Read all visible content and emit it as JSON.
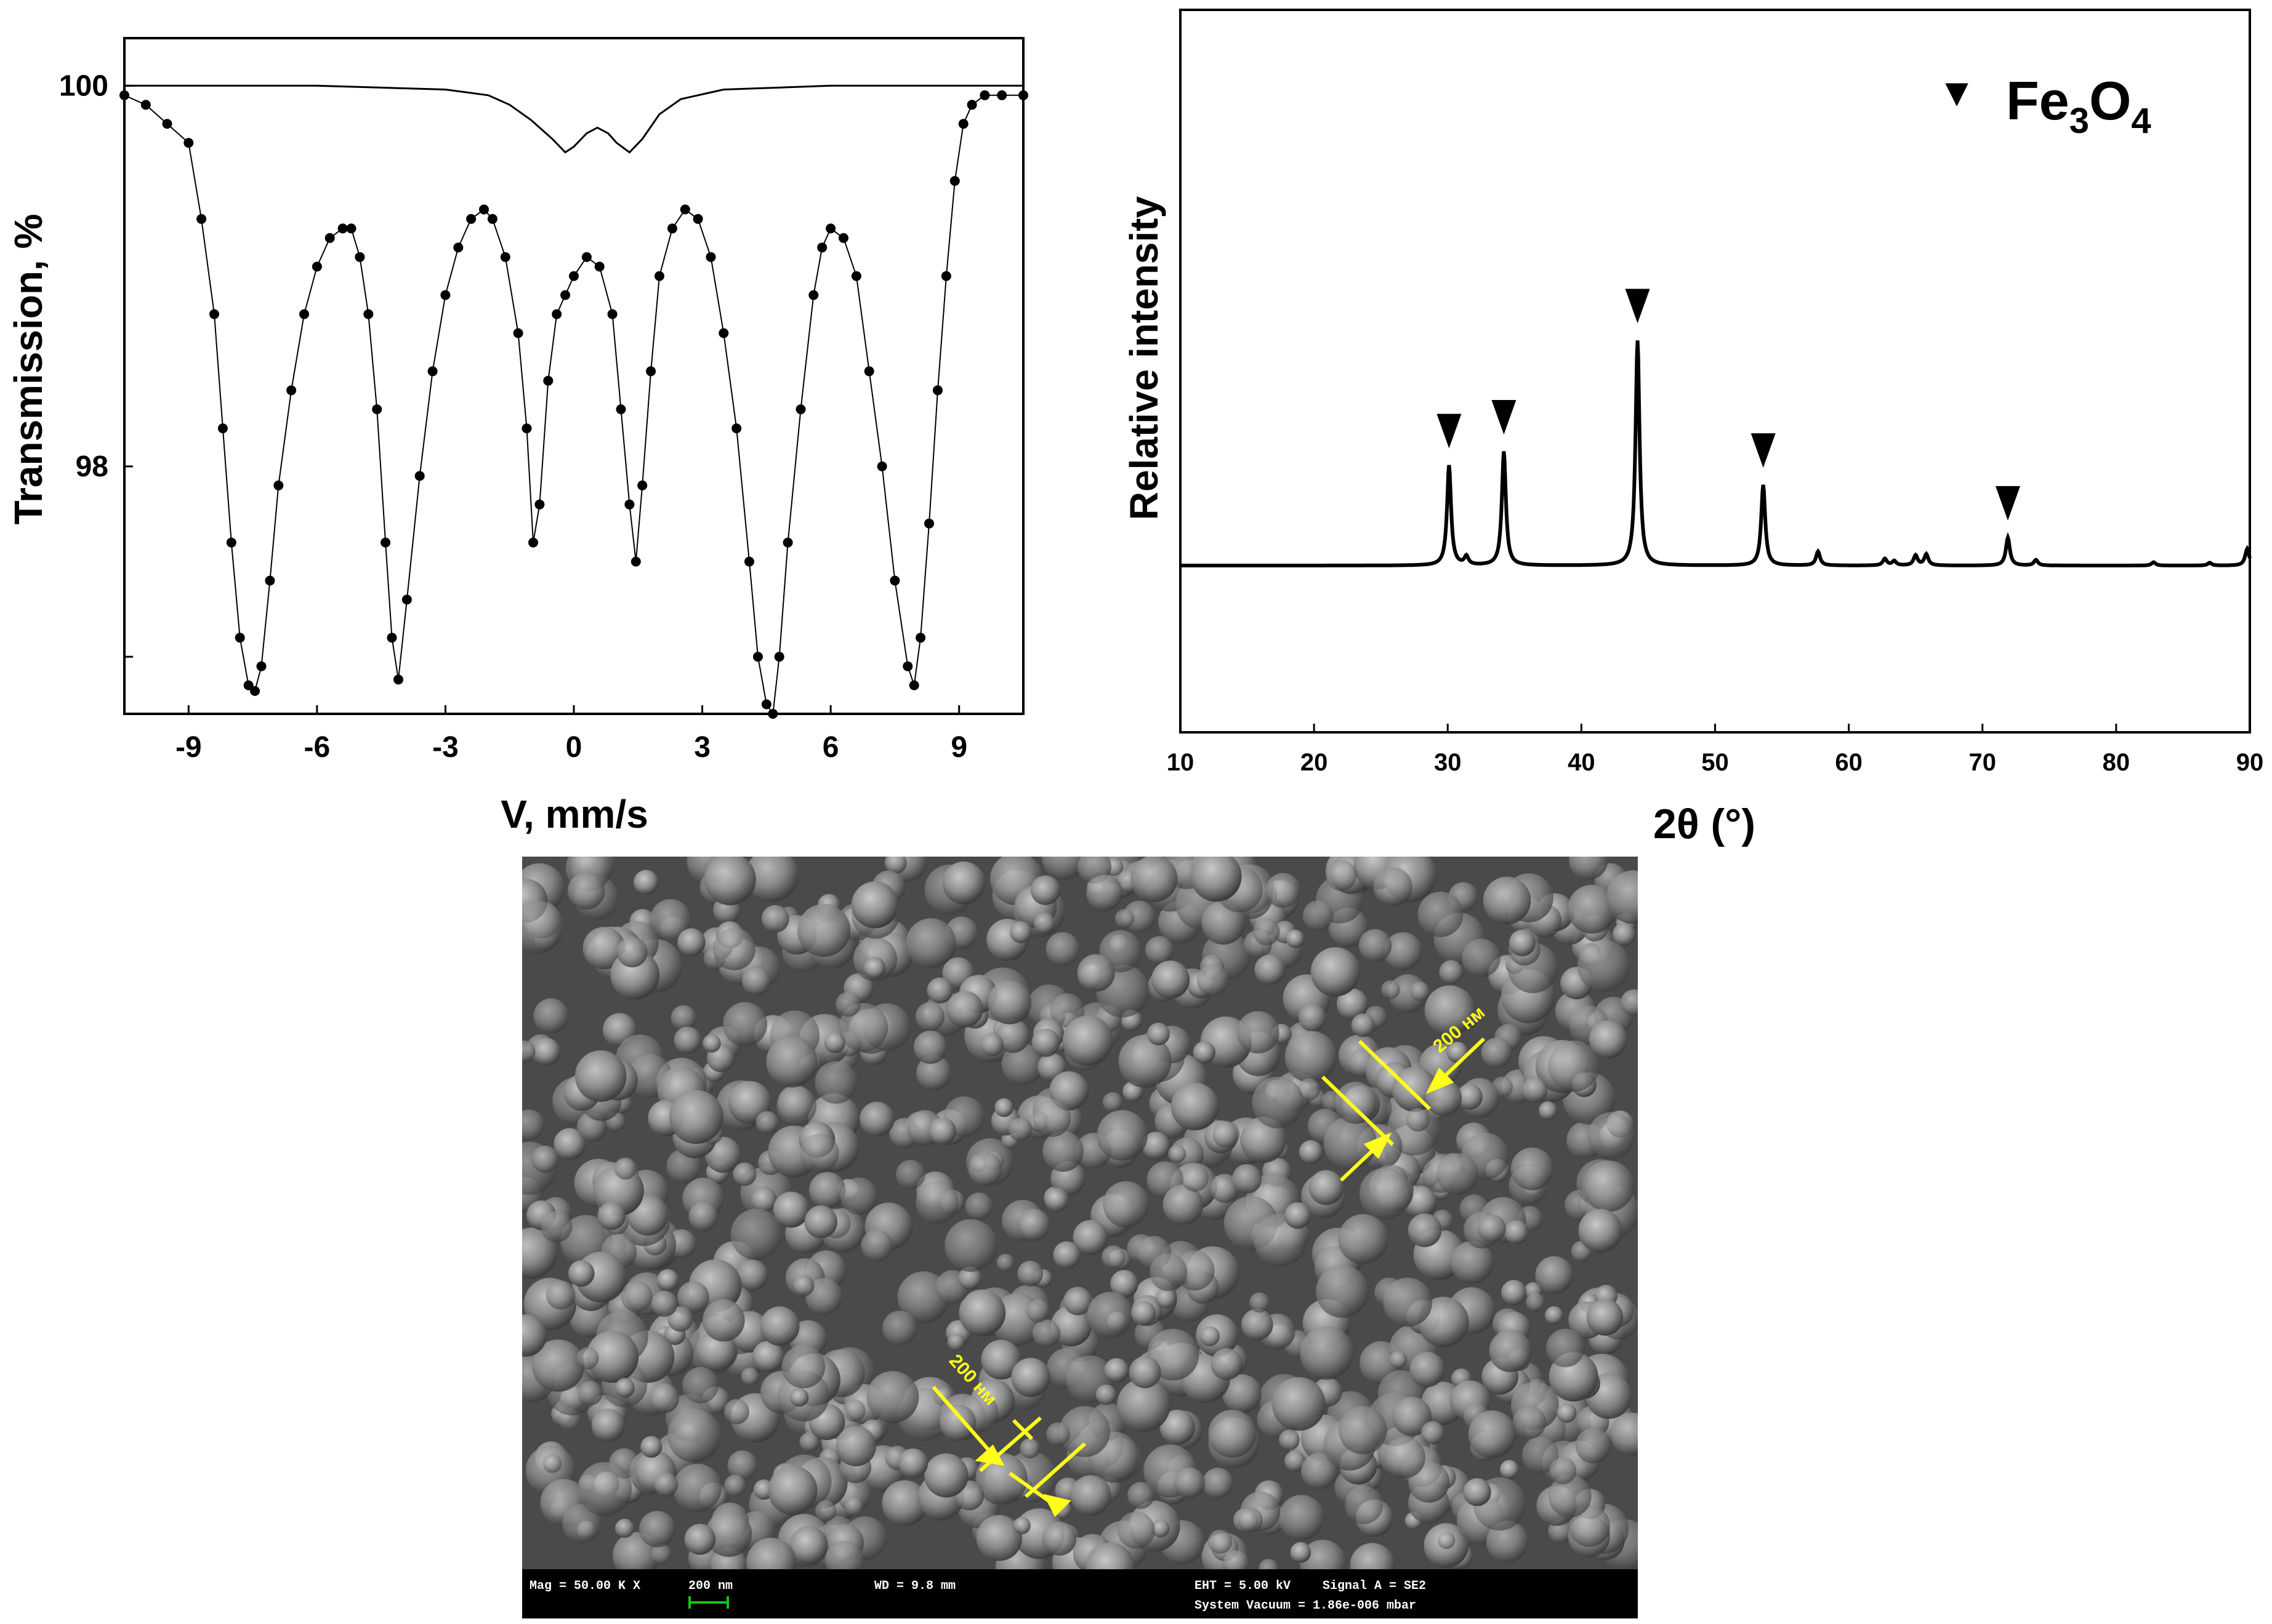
{
  "chart_data": [
    {
      "type": "scatter",
      "xlabel": "V, mm/s",
      "ylabel": "Transmission, %",
      "xlim": [
        -10.5,
        10.5
      ],
      "ylim": [
        96.7,
        100.25
      ],
      "xticks": [
        -9,
        -6,
        -3,
        0,
        3,
        6,
        9
      ],
      "yticks": [
        100,
        98
      ],
      "grid": false,
      "series": [
        {
          "kind": "points",
          "x": [
            -10.5,
            -10.0,
            -9.5,
            -9.0,
            -8.7,
            -8.4,
            -8.2,
            -8.0,
            -7.8,
            -7.6,
            -7.45,
            -7.3,
            -7.1,
            -6.9,
            -6.6,
            -6.3,
            -6.0,
            -5.7,
            -5.4,
            -5.2,
            -5.0,
            -4.8,
            -4.6,
            -4.4,
            -4.25,
            -4.1,
            -3.9,
            -3.6,
            -3.3,
            -3.0,
            -2.7,
            -2.4,
            -2.1,
            -1.9,
            -1.6,
            -1.3,
            -1.1,
            -0.95,
            -0.8,
            -0.6,
            -0.4,
            -0.2,
            0.0,
            0.3,
            0.6,
            0.9,
            1.1,
            1.3,
            1.45,
            1.6,
            1.8,
            2.0,
            2.3,
            2.6,
            2.9,
            3.2,
            3.5,
            3.8,
            4.1,
            4.3,
            4.5,
            4.65,
            4.8,
            5.0,
            5.3,
            5.6,
            5.8,
            6.0,
            6.3,
            6.6,
            6.9,
            7.2,
            7.5,
            7.8,
            7.95,
            8.1,
            8.3,
            8.5,
            8.7,
            8.9,
            9.1,
            9.3,
            9.6,
            10.0,
            10.5
          ],
          "y": [
            99.95,
            99.9,
            99.8,
            99.7,
            99.3,
            98.8,
            98.2,
            97.6,
            97.1,
            96.85,
            96.82,
            96.95,
            97.4,
            97.9,
            98.4,
            98.8,
            99.05,
            99.2,
            99.25,
            99.25,
            99.1,
            98.8,
            98.3,
            97.6,
            97.1,
            96.88,
            97.3,
            97.95,
            98.5,
            98.9,
            99.15,
            99.3,
            99.35,
            99.3,
            99.1,
            98.7,
            98.2,
            97.6,
            97.8,
            98.45,
            98.8,
            98.9,
            99.0,
            99.1,
            99.05,
            98.8,
            98.3,
            97.8,
            97.5,
            97.9,
            98.5,
            99.0,
            99.25,
            99.35,
            99.3,
            99.1,
            98.7,
            98.2,
            97.5,
            97.0,
            96.75,
            96.7,
            97.0,
            97.6,
            98.3,
            98.9,
            99.15,
            99.25,
            99.2,
            99.0,
            98.5,
            98.0,
            97.4,
            96.95,
            96.85,
            97.1,
            97.7,
            98.4,
            99.0,
            99.5,
            99.8,
            99.9,
            99.95,
            99.95,
            99.95
          ]
        },
        {
          "kind": "line",
          "x": [
            -10.5,
            -6.0,
            -3.0,
            -2.0,
            -1.5,
            -1.0,
            -0.5,
            -0.2,
            0.0,
            0.3,
            0.55,
            0.8,
            1.0,
            1.3,
            1.6,
            2.0,
            2.5,
            3.5,
            6.0,
            10.5
          ],
          "y": [
            100.0,
            100.0,
            99.98,
            99.95,
            99.9,
            99.82,
            99.72,
            99.65,
            99.68,
            99.75,
            99.78,
            99.75,
            99.7,
            99.65,
            99.72,
            99.85,
            99.93,
            99.98,
            100.0,
            100.0
          ]
        }
      ]
    },
    {
      "type": "line",
      "xlabel": "2θ (°)",
      "ylabel": "Relative intensity",
      "xlim": [
        10,
        90
      ],
      "xticks": [
        10,
        20,
        30,
        40,
        50,
        60,
        70,
        80,
        90
      ],
      "ylim": [
        -0.3,
        1.0
      ],
      "grid": false,
      "legend": {
        "marker": "▼",
        "text": "Fe",
        "sub1": "3",
        "mid": "O",
        "sub2": "4",
        "position": "top-right"
      },
      "baseline": 0,
      "peaks": [
        {
          "x": 30.1,
          "height": 0.18,
          "marked": true
        },
        {
          "x": 31.4,
          "height": 0.015,
          "marked": false
        },
        {
          "x": 34.2,
          "height": 0.205,
          "marked": true
        },
        {
          "x": 44.2,
          "height": 0.405,
          "marked": true
        },
        {
          "x": 53.6,
          "height": 0.145,
          "marked": true
        },
        {
          "x": 57.7,
          "height": 0.025,
          "marked": false
        },
        {
          "x": 62.7,
          "height": 0.012,
          "marked": false
        },
        {
          "x": 63.4,
          "height": 0.008,
          "marked": false
        },
        {
          "x": 65.0,
          "height": 0.018,
          "marked": false
        },
        {
          "x": 65.8,
          "height": 0.02,
          "marked": false
        },
        {
          "x": 71.9,
          "height": 0.05,
          "marked": true
        },
        {
          "x": 74.0,
          "height": 0.01,
          "marked": false
        },
        {
          "x": 82.8,
          "height": 0.006,
          "marked": false
        },
        {
          "x": 87.0,
          "height": 0.005,
          "marked": false
        },
        {
          "x": 89.8,
          "height": 0.03,
          "marked": false
        }
      ]
    }
  ],
  "sem": {
    "scale_label_1": "200 нм",
    "scale_label_2": "200 нм",
    "mag": "Mag =  50.00 K X",
    "scalebar": "200 nm",
    "wd": "WD =  9.8 mm",
    "eht": "EHT =  5.00 kV",
    "signal": "Signal A = SE2",
    "vacuum": "System Vacuum = 1.86e-006 mbar",
    "annotation_color": "#ffff1a"
  }
}
